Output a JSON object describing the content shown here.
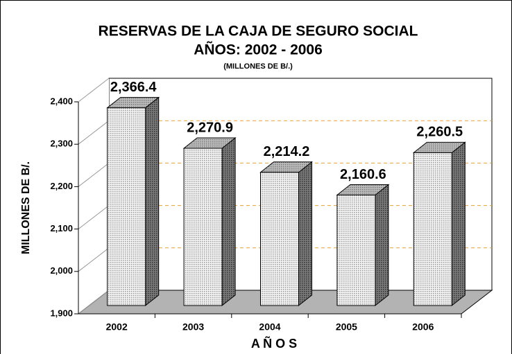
{
  "chart_data": {
    "type": "bar3d",
    "title": "RESERVAS DE LA CAJA DE SEGURO SOCIAL",
    "subtitle": "AÑOS: 2002 - 2006",
    "note": "(MILLONES DE B/.)",
    "y_label": "MILLONES DE B/.",
    "x_label": "A Ñ O S",
    "categories": [
      "2002",
      "2003",
      "2004",
      "2005",
      "2006"
    ],
    "values": [
      2366.4,
      2270.9,
      2214.2,
      2160.6,
      2260.5
    ],
    "value_labels": [
      "2,366.4",
      "2,270.9",
      "2,214.2",
      "2,160.6",
      "2,260.5"
    ],
    "color": "#d9d9d9",
    "ylim": [
      1900,
      2400
    ],
    "yticks": [
      {
        "value": 1900,
        "label": "1,900"
      },
      {
        "value": 2000,
        "label": "2,000"
      },
      {
        "value": 2100,
        "label": "2,100"
      },
      {
        "value": 2200,
        "label": "2,200"
      },
      {
        "value": 2300,
        "label": "2,300"
      },
      {
        "value": 2400,
        "label": "2,400"
      }
    ],
    "grid": true,
    "grid_color": "#e8a030"
  }
}
